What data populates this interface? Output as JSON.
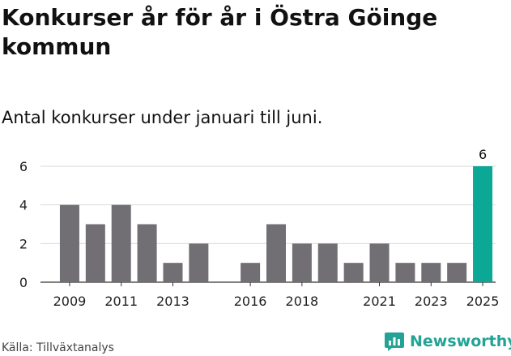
{
  "title": "Konkurser år för år i Östra Göinge kommun",
  "subtitle": "Antal konkurser under januari till juni.",
  "source": "Källa: Tillväxtanalys",
  "brand": {
    "name": "Newsworthy",
    "icon": "newsworthy-logo-icon",
    "color": "#22a396"
  },
  "colors": {
    "bar": "#716f74",
    "highlight": "#0aa895",
    "grid": "#d9d9d9",
    "axis": "#333333"
  },
  "chart_data": {
    "type": "bar",
    "title": "Konkurser år för år i Östra Göinge kommun",
    "subtitle": "Antal konkurser under januari till juni.",
    "xlabel": "",
    "ylabel": "",
    "ylim": [
      0,
      6
    ],
    "yticks": [
      0,
      2,
      4,
      6
    ],
    "grid": true,
    "legend": "none",
    "categories": [
      "2009",
      "2010",
      "2011",
      "2012",
      "2013",
      "2014",
      "2015",
      "2016",
      "2017",
      "2018",
      "2019",
      "2020",
      "2021",
      "2022",
      "2023",
      "2024",
      "2025"
    ],
    "values": [
      4,
      3,
      4,
      3,
      1,
      2,
      null,
      1,
      3,
      2,
      2,
      1,
      2,
      1,
      1,
      1,
      6
    ],
    "xtick_labels": [
      "2009",
      "2011",
      "2013",
      "2016",
      "2018",
      "2021",
      "2023",
      "2025"
    ],
    "highlight_category": "2025",
    "data_labels": [
      {
        "category": "2025",
        "text": "6"
      }
    ]
  }
}
